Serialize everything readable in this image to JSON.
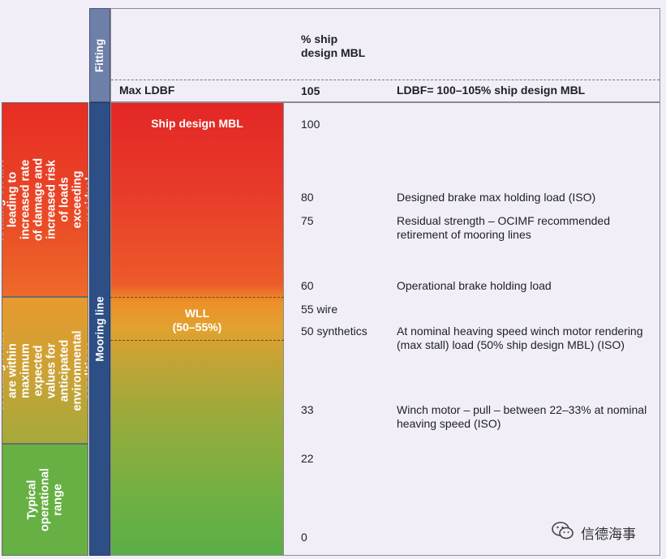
{
  "categories": {
    "red": "Increased loading on line leading to increased rate of damage and increased risk of loads exceeding residual strength",
    "orange": "Working loads are within maximum expected values for anticipated environmental conditions",
    "green": "Typical operational range"
  },
  "bars": {
    "fitting": "Fitting",
    "mooring": "Mooring line"
  },
  "header": {
    "pct_line1": "% ship",
    "pct_line2": "design MBL"
  },
  "fitting_row": {
    "label": "Max LDBF",
    "value": "105",
    "note": "LDBF= 100–105% ship design MBL"
  },
  "column": {
    "ship_mbl": "Ship design MBL",
    "wll_line1": "WLL",
    "wll_line2": "(50–55%)"
  },
  "rows": [
    {
      "value": "100",
      "desc": ""
    },
    {
      "value": "80",
      "desc": "Designed brake max holding load (ISO)"
    },
    {
      "value": "75",
      "desc": "Residual strength – OCIMF recommended retirement of mooring lines"
    },
    {
      "value": "60",
      "desc": "Operational brake holding load"
    },
    {
      "value": "55 wire",
      "desc": ""
    },
    {
      "value": "50 synthetics",
      "desc": "At nominal heaving speed winch motor rendering (max stall) load (50% ship design MBL) (ISO)"
    },
    {
      "value": "33",
      "desc": "Winch motor – pull – between 22–33% at nominal heaving speed (ISO)"
    },
    {
      "value": "22",
      "desc": ""
    },
    {
      "value": "0",
      "desc": ""
    }
  ],
  "watermark": {
    "text": "信德海事",
    "icon": "wechat-icon"
  },
  "colors": {
    "red": "#e62d24",
    "orange": "#e79a2f",
    "green": "#66b044",
    "mooring_blue": "#2e4f86",
    "fitting_blue": "#6e7fa8"
  }
}
